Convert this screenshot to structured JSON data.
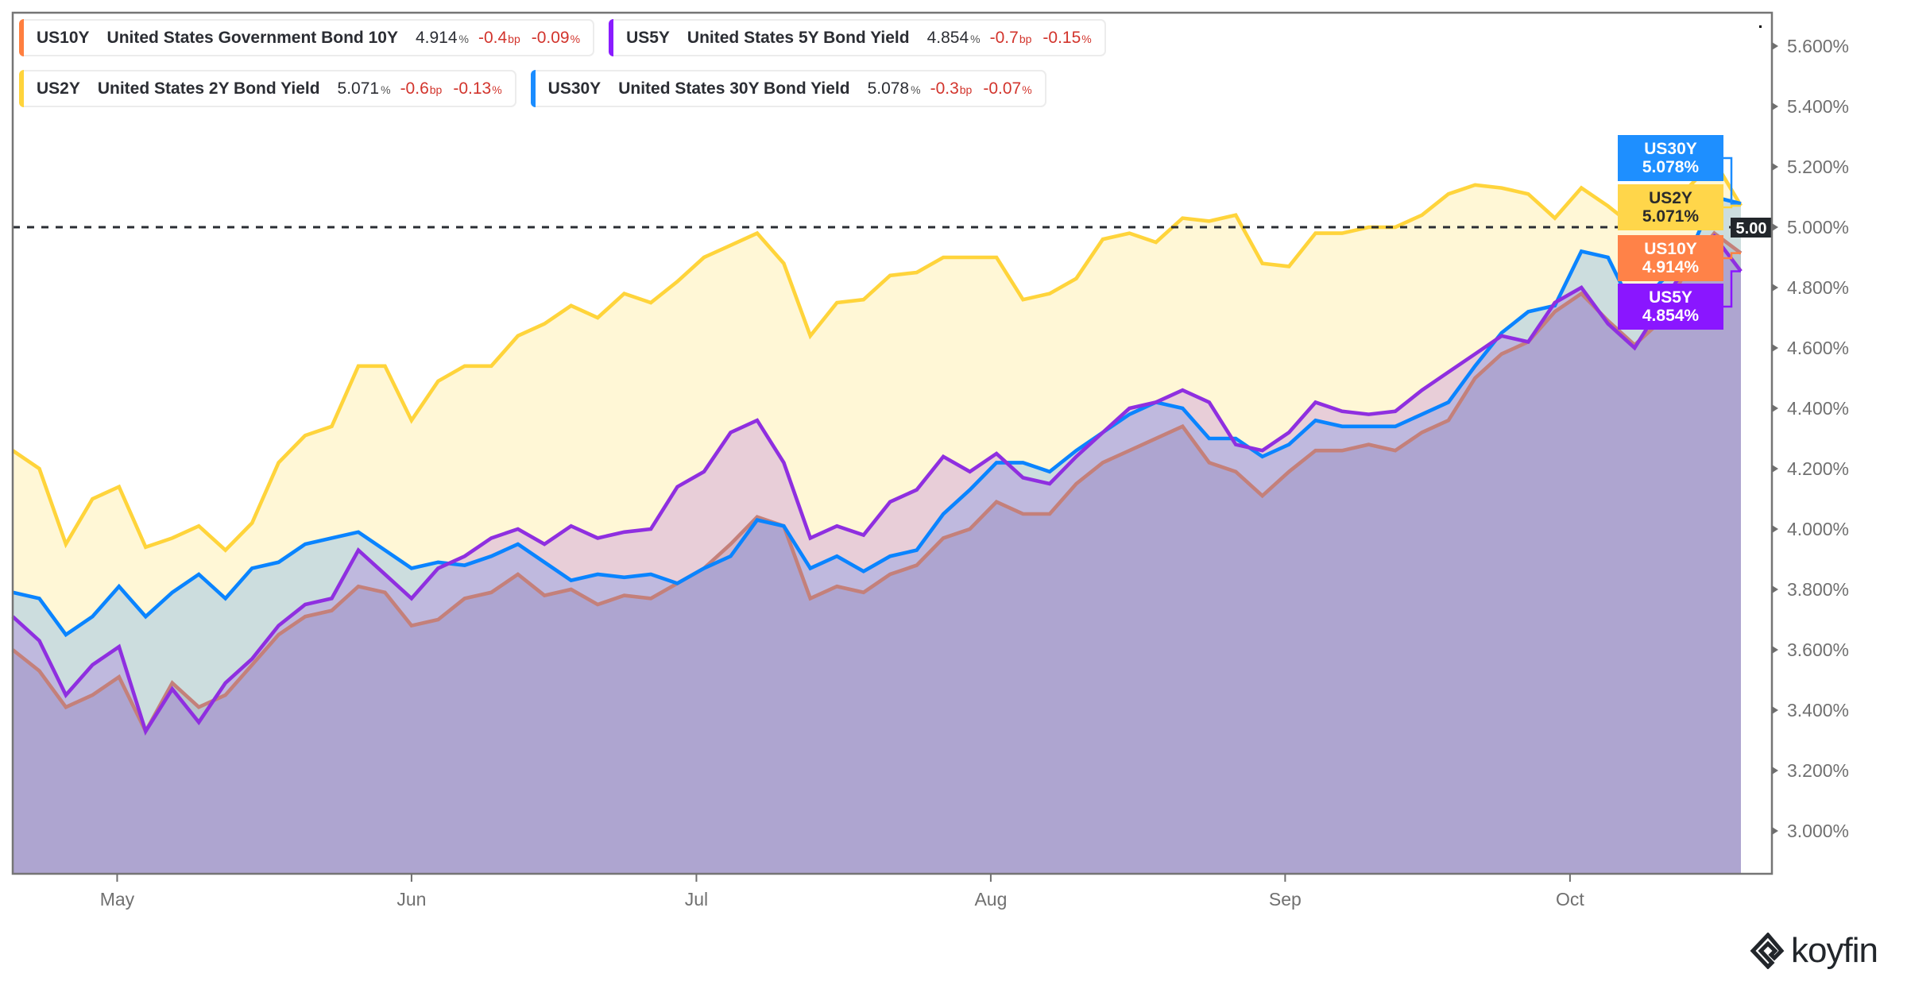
{
  "legend": [
    {
      "symbol": "US10Y",
      "name": "United States Government Bond 10Y",
      "value": "4.914",
      "unit": "%",
      "change_bp": "-0.4",
      "bp_unit": "bp",
      "change_pct": "-0.09",
      "pct_unit": "%",
      "color": "#ff7f3f"
    },
    {
      "symbol": "US5Y",
      "name": "United States 5Y Bond Yield",
      "value": "4.854",
      "unit": "%",
      "change_bp": "-0.7",
      "bp_unit": "bp",
      "change_pct": "-0.15",
      "pct_unit": "%",
      "color": "#8a1cff"
    },
    {
      "symbol": "US2Y",
      "name": "United States 2Y Bond Yield",
      "value": "5.071",
      "unit": "%",
      "change_bp": "-0.6",
      "bp_unit": "bp",
      "change_pct": "-0.13",
      "pct_unit": "%",
      "color": "#ffd43b"
    },
    {
      "symbol": "US30Y",
      "name": "United States 30Y Bond Yield",
      "value": "5.078",
      "unit": "%",
      "change_bp": "-0.3",
      "bp_unit": "bp",
      "change_pct": "-0.07",
      "pct_unit": "%",
      "color": "#1a8cff"
    }
  ],
  "logo": {
    "text": "koyfin"
  },
  "chart_data": {
    "type": "area",
    "title": "",
    "xlabel": "",
    "ylabel": "",
    "x_start": "2023-04-20",
    "x_end": "2023-10-19",
    "ylim": [
      2.858,
      5.71
    ],
    "grid": false,
    "x_ticks": [
      {
        "date": "2023-05-01",
        "label": "May"
      },
      {
        "date": "2023-06-01",
        "label": "Jun"
      },
      {
        "date": "2023-07-01",
        "label": "Jul"
      },
      {
        "date": "2023-08-01",
        "label": "Aug"
      },
      {
        "date": "2023-09-01",
        "label": "Sep"
      },
      {
        "date": "2023-10-01",
        "label": "Oct"
      }
    ],
    "y_ticks": [
      {
        "value": 5.6,
        "label": "5.600%"
      },
      {
        "value": 5.4,
        "label": "5.400%"
      },
      {
        "value": 5.2,
        "label": "5.200%"
      },
      {
        "value": 5.0,
        "label": "5.000%"
      },
      {
        "value": 4.8,
        "label": "4.800%"
      },
      {
        "value": 4.6,
        "label": "4.600%"
      },
      {
        "value": 4.4,
        "label": "4.400%"
      },
      {
        "value": 4.2,
        "label": "4.200%"
      },
      {
        "value": 4.0,
        "label": "4.000%"
      },
      {
        "value": 3.8,
        "label": "3.800%"
      },
      {
        "value": 3.6,
        "label": "3.600%"
      },
      {
        "value": 3.4,
        "label": "3.400%"
      },
      {
        "value": 3.2,
        "label": "3.200%"
      },
      {
        "value": 3.0,
        "label": "3.000%"
      }
    ],
    "reference_line": {
      "value": 5.0,
      "label": "5.00"
    },
    "series": [
      {
        "name": "US2Y",
        "line_color": "#ffd43b",
        "fill": "rgba(255,214,51,0.2)",
        "values": [
          4.26,
          4.2,
          3.95,
          4.1,
          4.14,
          3.94,
          3.97,
          4.01,
          3.93,
          4.02,
          4.22,
          4.31,
          4.34,
          4.54,
          4.54,
          4.36,
          4.49,
          4.54,
          4.54,
          4.64,
          4.68,
          4.74,
          4.7,
          4.78,
          4.75,
          4.82,
          4.9,
          4.94,
          4.98,
          4.88,
          4.64,
          4.75,
          4.76,
          4.84,
          4.85,
          4.9,
          4.9,
          4.9,
          4.76,
          4.78,
          4.83,
          4.96,
          4.98,
          4.95,
          5.03,
          5.02,
          5.04,
          4.88,
          4.87,
          4.98,
          4.98,
          5.0,
          5.0,
          5.04,
          5.11,
          5.14,
          5.13,
          5.11,
          5.03,
          5.13,
          5.07,
          5.0,
          5.06,
          5.13,
          5.22,
          5.071
        ]
      },
      {
        "name": "US10Y",
        "line_color": "#c4807a",
        "fill": "rgba(168,145,143,0.3)",
        "values": [
          3.6,
          3.53,
          3.41,
          3.45,
          3.51,
          3.33,
          3.49,
          3.41,
          3.45,
          3.55,
          3.65,
          3.71,
          3.73,
          3.81,
          3.79,
          3.68,
          3.7,
          3.77,
          3.79,
          3.85,
          3.78,
          3.8,
          3.75,
          3.78,
          3.77,
          3.82,
          3.87,
          3.95,
          4.04,
          4.01,
          3.77,
          3.81,
          3.79,
          3.85,
          3.88,
          3.97,
          4.0,
          4.09,
          4.05,
          4.05,
          4.15,
          4.22,
          4.26,
          4.3,
          4.34,
          4.22,
          4.19,
          4.11,
          4.19,
          4.26,
          4.26,
          4.28,
          4.26,
          4.32,
          4.36,
          4.5,
          4.58,
          4.62,
          4.72,
          4.78,
          4.69,
          4.61,
          4.69,
          4.87,
          4.98,
          4.914
        ]
      },
      {
        "name": "US30Y",
        "line_color": "#0a84ff",
        "fill": "rgba(0,122,255,0.2)",
        "values": [
          3.79,
          3.77,
          3.65,
          3.71,
          3.81,
          3.71,
          3.79,
          3.85,
          3.77,
          3.87,
          3.89,
          3.95,
          3.97,
          3.99,
          3.93,
          3.87,
          3.89,
          3.88,
          3.91,
          3.95,
          3.89,
          3.83,
          3.85,
          3.84,
          3.85,
          3.82,
          3.87,
          3.91,
          4.03,
          4.01,
          3.87,
          3.91,
          3.86,
          3.91,
          3.93,
          4.05,
          4.13,
          4.22,
          4.22,
          4.19,
          4.26,
          4.32,
          4.38,
          4.42,
          4.4,
          4.3,
          4.3,
          4.24,
          4.28,
          4.36,
          4.34,
          4.34,
          4.34,
          4.38,
          4.42,
          4.54,
          4.65,
          4.72,
          4.74,
          4.92,
          4.9,
          4.72,
          4.82,
          4.9,
          5.1,
          5.078
        ]
      },
      {
        "name": "US5Y",
        "line_color": "#8f2fe0",
        "fill": "rgba(138,43,226,0.2)",
        "values": [
          3.71,
          3.63,
          3.45,
          3.55,
          3.61,
          3.33,
          3.47,
          3.36,
          3.49,
          3.57,
          3.68,
          3.75,
          3.77,
          3.93,
          3.85,
          3.77,
          3.87,
          3.91,
          3.97,
          4.0,
          3.95,
          4.01,
          3.97,
          3.99,
          4.0,
          4.14,
          4.19,
          4.32,
          4.36,
          4.22,
          3.97,
          4.01,
          3.98,
          4.09,
          4.13,
          4.24,
          4.19,
          4.25,
          4.17,
          4.15,
          4.24,
          4.32,
          4.4,
          4.42,
          4.46,
          4.42,
          4.28,
          4.26,
          4.32,
          4.42,
          4.39,
          4.38,
          4.39,
          4.46,
          4.52,
          4.58,
          4.64,
          4.62,
          4.75,
          4.8,
          4.68,
          4.6,
          4.74,
          4.88,
          4.97,
          4.854
        ]
      }
    ],
    "end_labels": [
      {
        "symbol": "US30Y",
        "value_label": "5.078%",
        "series": "US30Y",
        "bg": "#1e8fff",
        "text": "#ffffff",
        "line": "#1a8cff"
      },
      {
        "symbol": "US2Y",
        "value_label": "5.071%",
        "series": "US2Y",
        "bg": "#ffd64a",
        "text": "#2b2b2b",
        "line": "#ffd43b"
      },
      {
        "symbol": "US10Y",
        "value_label": "4.914%",
        "series": "US10Y",
        "bg": "#ff8248",
        "text": "#ffffff",
        "line": "#ff7f3f"
      },
      {
        "symbol": "US5Y",
        "value_label": "4.854%",
        "series": "US5Y",
        "bg": "#8a16ff",
        "text": "#ffffff",
        "line": "#8a16ff"
      }
    ]
  }
}
